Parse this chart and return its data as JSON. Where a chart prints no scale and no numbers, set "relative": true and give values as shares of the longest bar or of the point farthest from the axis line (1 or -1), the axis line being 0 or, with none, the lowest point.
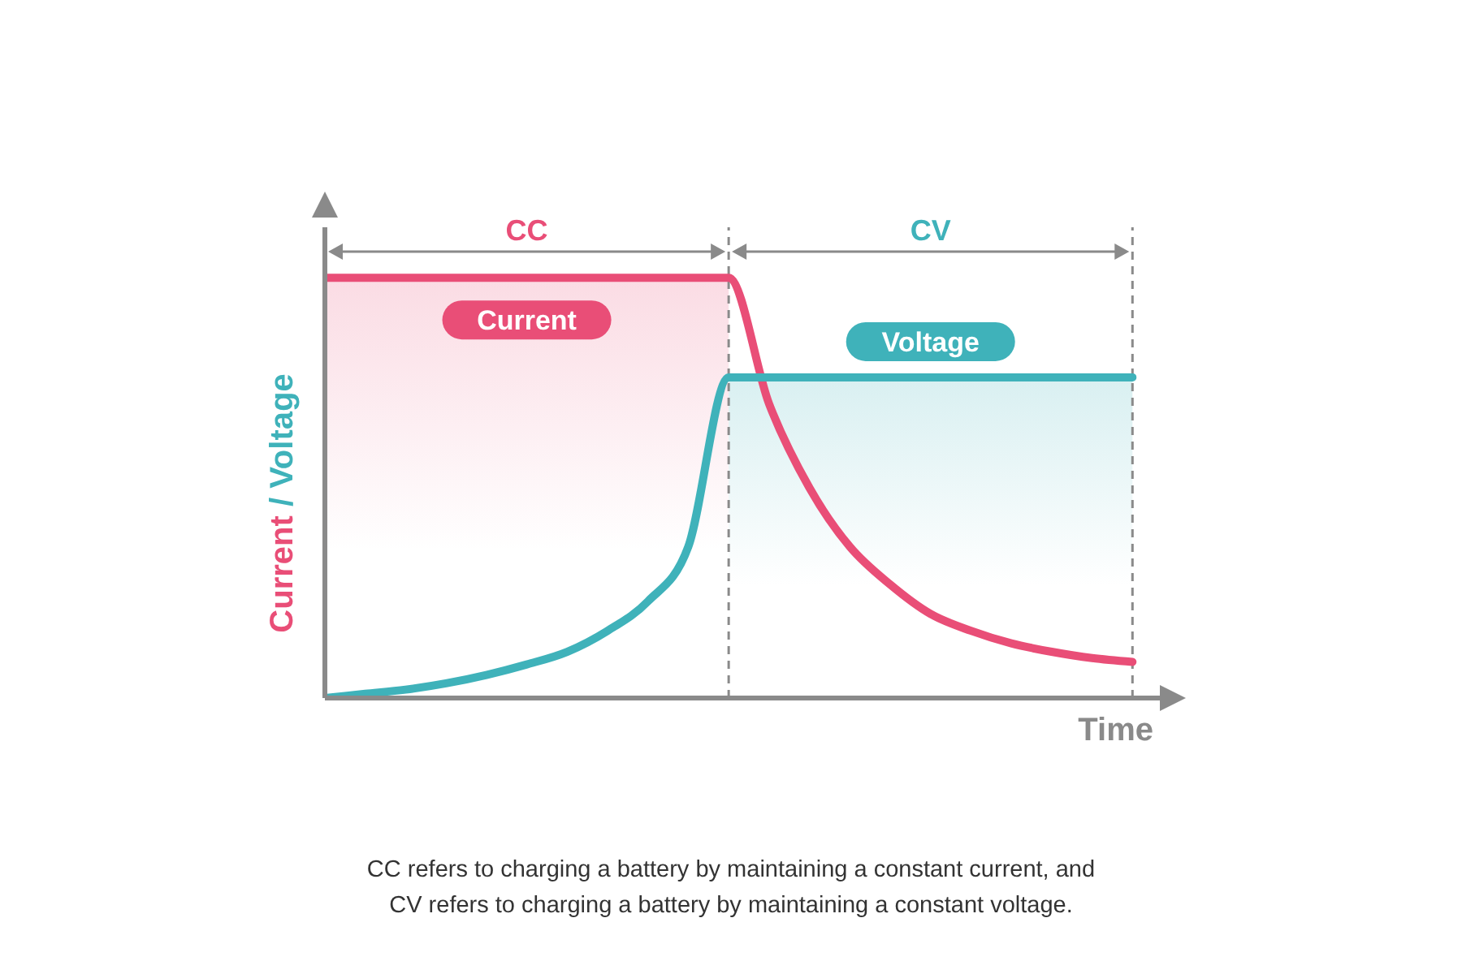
{
  "chart_data": {
    "type": "line",
    "relative": true,
    "xlabel": "Time",
    "ylabel": "Current / Voltage",
    "categories": [
      null,
      null,
      null,
      null,
      null,
      null,
      null,
      null,
      null,
      null,
      null,
      null,
      null,
      null,
      null,
      null,
      null,
      null,
      null,
      null,
      null
    ],
    "series": [
      {
        "name": "Current",
        "color": "#e94e77",
        "values": [
          1,
          1,
          1,
          1,
          1,
          1,
          1,
          1,
          1,
          1,
          1,
          0.7,
          0.5,
          0.36,
          0.27,
          0.2,
          0.16,
          0.13,
          0.11,
          0.095,
          0.086
        ]
      },
      {
        "name": "Voltage",
        "color": "#3fb2ba",
        "values": [
          0,
          0.01,
          0.02,
          0.035,
          0.055,
          0.08,
          0.11,
          0.16,
          0.23,
          0.36,
          0.763,
          0.763,
          0.763,
          0.763,
          0.763,
          0.763,
          0.763,
          0.763,
          0.763,
          0.763,
          0.763
        ]
      }
    ],
    "annotations": [
      "CC",
      "CV",
      "CC refers to charging a battery by maintaining a constant current, and CV refers to charging a battery by maintaining a constant voltage."
    ]
  }
}
